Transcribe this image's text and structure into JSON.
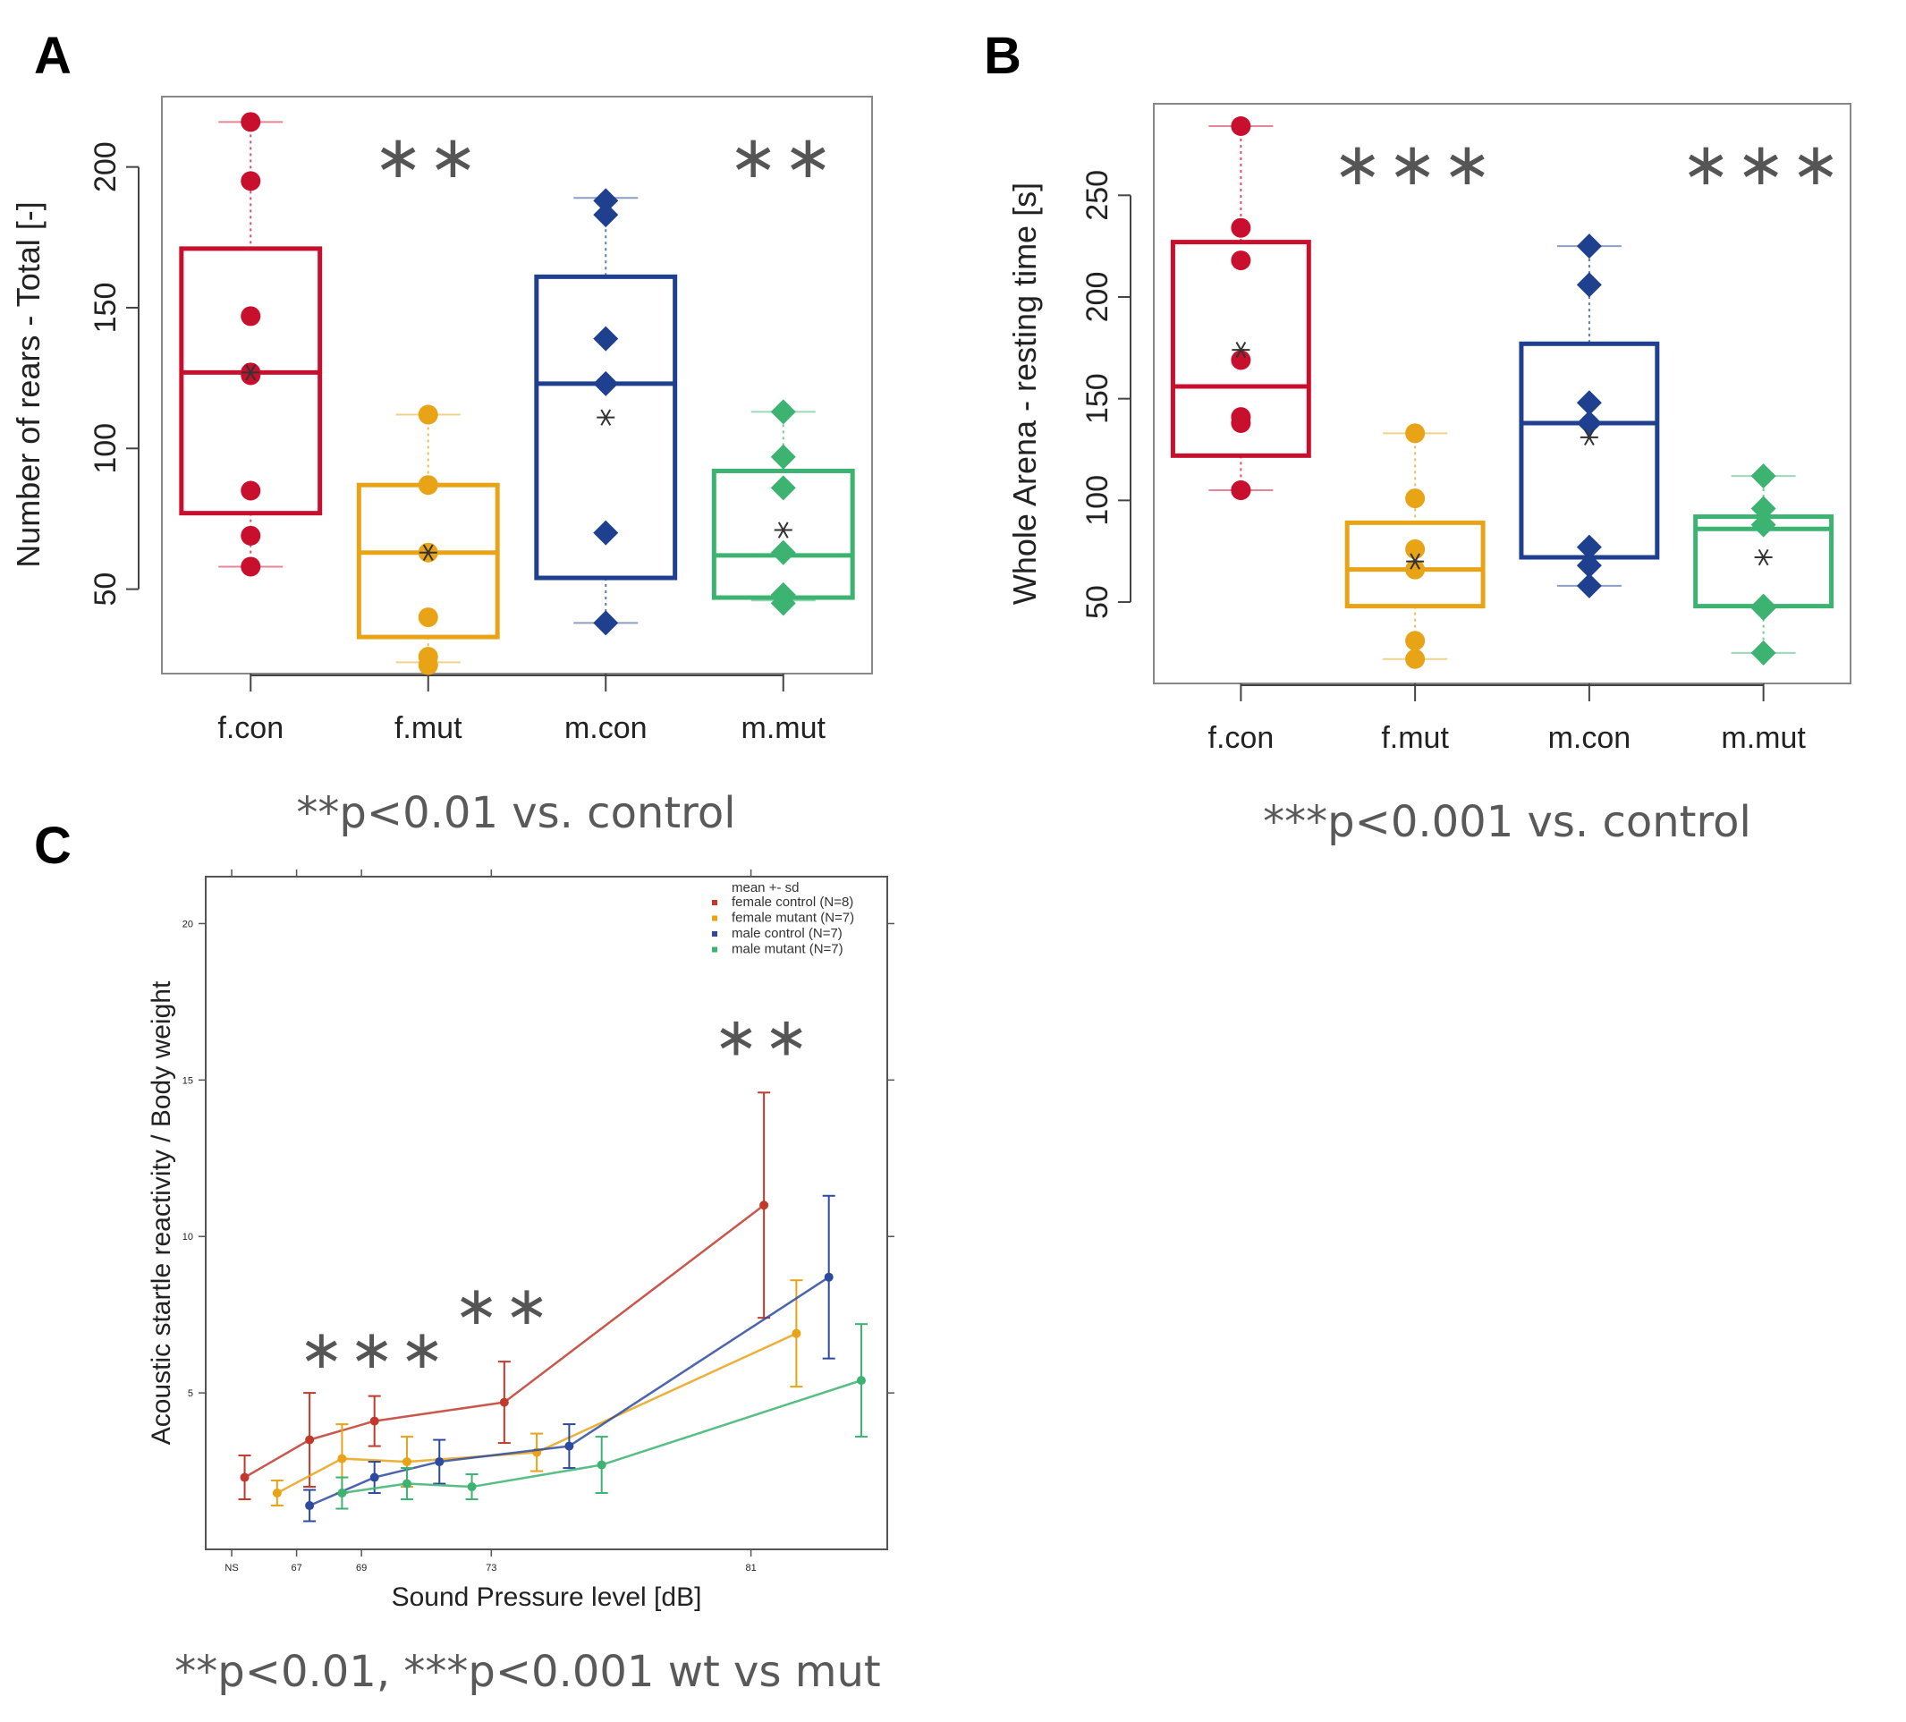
{
  "chart_data": [
    {
      "panel": "A",
      "type": "box",
      "ylabel": "Number of rears - Total [-]",
      "ylim": [
        20,
        225
      ],
      "yticks": [
        50,
        100,
        150,
        200
      ],
      "categories": [
        "f.con",
        "f.mut",
        "m.con",
        "m.mut"
      ],
      "colors": [
        "#c8102e",
        "#e8a317",
        "#1f3f8f",
        "#3cb371"
      ],
      "markers": [
        "circle",
        "circle",
        "diamond",
        "diamond"
      ],
      "boxes": [
        {
          "whisker_low": 58,
          "q1": 77,
          "median": 127,
          "q3": 171,
          "whisker_high": 216,
          "mean": 127
        },
        {
          "whisker_low": 24,
          "q1": 33,
          "median": 63,
          "q3": 87,
          "whisker_high": 112,
          "mean": 63
        },
        {
          "whisker_low": 38,
          "q1": 54,
          "median": 123,
          "q3": 161,
          "whisker_high": 189,
          "mean": 111
        },
        {
          "whisker_low": 46,
          "q1": 47,
          "median": 62,
          "q3": 92,
          "whisker_high": 113,
          "mean": 71
        }
      ],
      "points": [
        [
          216,
          195,
          147,
          127,
          126,
          85,
          69,
          58
        ],
        [
          112,
          87,
          63,
          40,
          26,
          23
        ],
        [
          188,
          183,
          139,
          123,
          70,
          38
        ],
        [
          113,
          97,
          86,
          63,
          48,
          45
        ]
      ],
      "significance": [
        "",
        "**",
        "",
        "**"
      ],
      "caption": "**p<0.01 vs. control"
    },
    {
      "panel": "B",
      "type": "box",
      "ylabel": "Whole Arena - resting time [s]",
      "ylim": [
        10,
        295
      ],
      "yticks": [
        50,
        100,
        150,
        200,
        250
      ],
      "categories": [
        "f.con",
        "f.mut",
        "m.con",
        "m.mut"
      ],
      "colors": [
        "#c8102e",
        "#e8a317",
        "#1f3f8f",
        "#3cb371"
      ],
      "markers": [
        "circle",
        "circle",
        "diamond",
        "diamond"
      ],
      "boxes": [
        {
          "whisker_low": 105,
          "q1": 122,
          "median": 156,
          "q3": 227,
          "whisker_high": 284,
          "mean": 174
        },
        {
          "whisker_low": 22,
          "q1": 48,
          "median": 66,
          "q3": 89,
          "whisker_high": 133,
          "mean": 70
        },
        {
          "whisker_low": 58,
          "q1": 72,
          "median": 138,
          "q3": 177,
          "whisker_high": 225,
          "mean": 131
        },
        {
          "whisker_low": 25,
          "q1": 48,
          "median": 86,
          "q3": 92,
          "whisker_high": 112,
          "mean": 72
        }
      ],
      "points": [
        [
          284,
          234,
          218,
          169,
          141,
          138,
          105,
          105
        ],
        [
          133,
          101,
          76,
          66,
          31,
          22
        ],
        [
          225,
          206,
          148,
          138,
          77,
          68,
          58
        ],
        [
          112,
          96,
          88,
          48,
          47,
          25
        ]
      ],
      "significance": [
        "",
        "***",
        "",
        "***"
      ],
      "caption": "***p<0.001 vs. control"
    },
    {
      "panel": "C",
      "type": "line",
      "xlabel": "Sound Pressure level [dB]",
      "ylabel": "Acoustic startle reactivity / Body weight",
      "xlim": [
        0,
        10.5
      ],
      "ylim": [
        0,
        21.5
      ],
      "xticks": [
        0.4,
        1.4,
        2.4,
        4.4,
        8.4
      ],
      "xticklabels": [
        "NS",
        "67",
        "69",
        "73",
        "81"
      ],
      "yticks": [
        5,
        10,
        15,
        20
      ],
      "legend_title": "mean +- sd",
      "legend_position": "top-right",
      "series": [
        {
          "name": "female control (N=8)",
          "color": "#c0392b",
          "x": [
            0.6,
            1.6,
            2.6,
            4.6,
            8.6
          ],
          "y": [
            2.3,
            3.5,
            4.1,
            4.7,
            11.0
          ],
          "sd": [
            0.7,
            1.5,
            0.8,
            1.3,
            3.6
          ]
        },
        {
          "name": "female mutant (N=7)",
          "color": "#e8a317",
          "x": [
            1.1,
            2.1,
            3.1,
            5.1,
            9.1
          ],
          "y": [
            1.8,
            2.9,
            2.8,
            3.1,
            6.9
          ],
          "sd": [
            0.4,
            1.1,
            0.8,
            0.6,
            1.7
          ]
        },
        {
          "name": "male control (N=7)",
          "color": "#2e4a9e",
          "x": [
            1.6,
            2.6,
            3.6,
            5.6,
            9.6
          ],
          "y": [
            1.4,
            2.3,
            2.8,
            3.3,
            8.7
          ],
          "sd": [
            0.5,
            0.5,
            0.7,
            0.7,
            2.6
          ]
        },
        {
          "name": "male mutant (N=7)",
          "color": "#3cb371",
          "x": [
            2.1,
            3.1,
            4.1,
            6.1,
            10.1
          ],
          "y": [
            1.8,
            2.1,
            2.0,
            2.7,
            5.4
          ],
          "sd": [
            0.5,
            0.5,
            0.4,
            0.9,
            1.8
          ]
        }
      ],
      "annotations": [
        {
          "text": "***",
          "x": 2.6,
          "y": 5.8
        },
        {
          "text": "**",
          "x": 4.6,
          "y": 7.2
        },
        {
          "text": "**",
          "x": 8.6,
          "y": 15.8
        }
      ],
      "caption": "**p<0.01, ***p<0.001 wt vs mut"
    }
  ],
  "panel_letters": [
    "A",
    "B",
    "C"
  ]
}
